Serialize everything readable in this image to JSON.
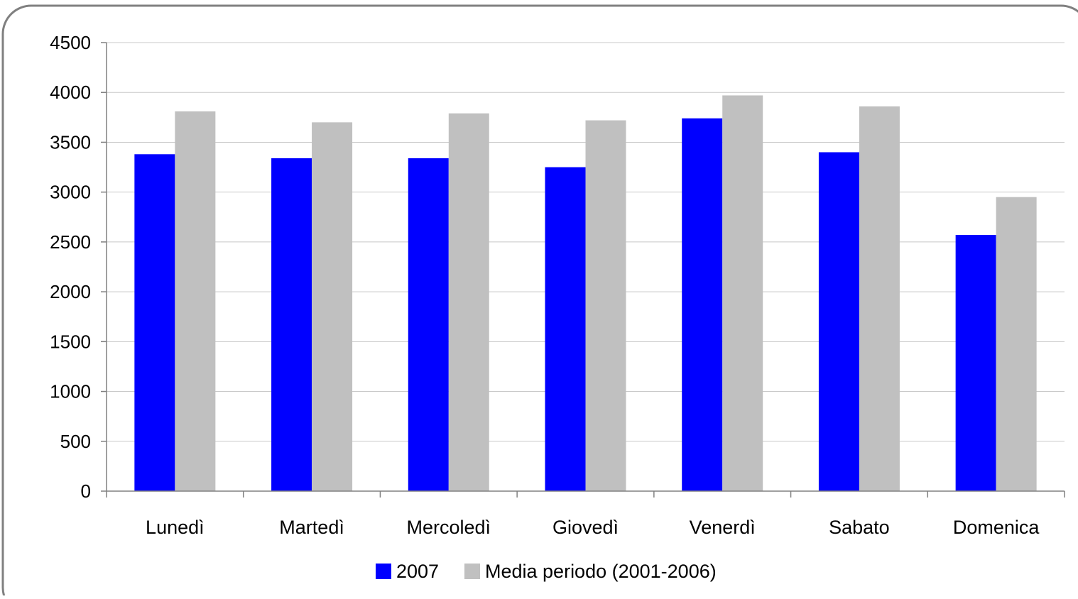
{
  "chart_data": {
    "type": "bar",
    "categories": [
      "Lunedì",
      "Martedì",
      "Mercoledì",
      "Giovedì",
      "Venerdì",
      "Sabato",
      "Domenica"
    ],
    "series": [
      {
        "name": "2007",
        "values": [
          3380,
          3340,
          3340,
          3250,
          3740,
          3400,
          2570
        ],
        "color": "#0000ff"
      },
      {
        "name": "Media periodo (2001-2006)",
        "values": [
          3810,
          3700,
          3790,
          3720,
          3970,
          3860,
          2950
        ],
        "color": "#c0c0c0"
      }
    ],
    "ylim": [
      0,
      4500
    ],
    "yticks": [
      0,
      500,
      1000,
      1500,
      2000,
      2500,
      3000,
      3500,
      4000,
      4500
    ],
    "ytick_labels": [
      "0",
      "500",
      "1000",
      "1500",
      "2000",
      "2500",
      "3000",
      "3500",
      "4000",
      "4500"
    ],
    "grid": true,
    "legend_position": "bottom",
    "title": "",
    "xlabel": "",
    "ylabel": ""
  }
}
